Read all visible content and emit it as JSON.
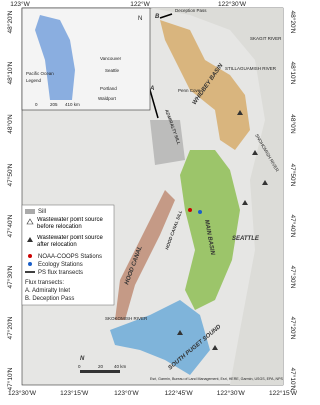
{
  "axes": {
    "top": [
      "123°W",
      "122°W",
      "122°30'W"
    ],
    "bottom": [
      "123°30'W",
      "123°15'W",
      "123°0'W",
      "122°45'W",
      "122°30'W",
      "122°15'W"
    ],
    "left": [
      "48°20'N",
      "48°10'N",
      "48°0'N",
      "47°50'N",
      "47°40'N",
      "47°30'N",
      "47°20'N",
      "47°10'N"
    ],
    "right": [
      "48°20'N",
      "48°10'N",
      "48°0'N",
      "47°50'N",
      "47°40'N",
      "47°30'N",
      "47°20'N",
      "47°10'N"
    ]
  },
  "inset": {
    "north": "N",
    "cities": [
      "Vancouver",
      "Seattle",
      "Portland",
      "Waldport"
    ],
    "ocean": "Pacific Ocean",
    "legend": "Legend",
    "scale": [
      "0",
      "205",
      "410 km"
    ]
  },
  "labels": {
    "b": "B",
    "deception": "Deception Pass",
    "a": "A",
    "admiralty": "ADMIRALTY SILL",
    "penn": "Penn Cove",
    "whidbey": "WHIDBEY BASIN",
    "skagit": "SKAGIT RIVER",
    "stilla": "STILLAGUAMISH RIVER",
    "snoho": "SNOHOMISH RIVER",
    "main": "MAIN BASIN",
    "seattle": "SEATTLE",
    "hood": "HOOD CANAL",
    "hoodsill": "HOOD CANAL SILL",
    "skoko": "SKOKOMISH RIVER",
    "south": "SOUTH PUGET SOUND",
    "north": "N"
  },
  "legend": {
    "items": [
      "Sill",
      "Wastewater point source before relocation",
      "Wastewater point source after relocation",
      "NOAA-COOPS Stations",
      "Ecology Stations",
      "PS flux transects"
    ],
    "flux": "Flux transects:",
    "a": "A. Admiralty Inlet",
    "b": "B. Deception Pass"
  },
  "scale": [
    "0",
    "20",
    "40 km"
  ],
  "attribution": "Esri, Garmin, Bureau of Land Management, Esri, HERE, Garmin, USGS, EPA, NPS"
}
